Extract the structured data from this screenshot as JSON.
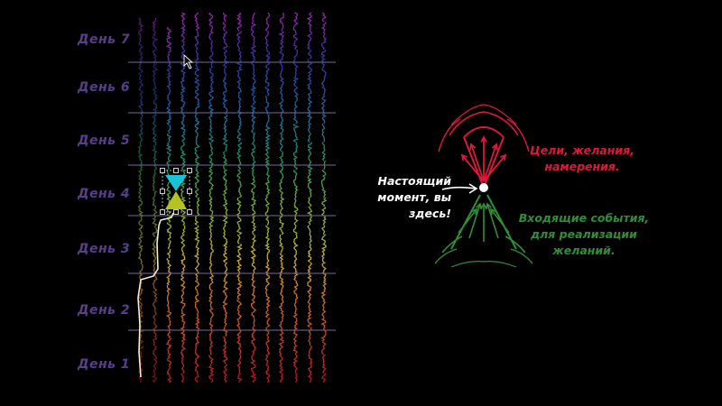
{
  "days": [
    "День 1",
    "День 2",
    "День 3",
    "День 4",
    "День 5",
    "День 6",
    "День 7"
  ],
  "labels": {
    "present": [
      "Настоящий",
      "момент, вы",
      "здесь!"
    ],
    "goals": [
      "Цели, желания,",
      "намерения."
    ],
    "events": [
      "Входящие события,",
      "для реализации",
      "желаний."
    ]
  },
  "colors": {
    "day_label": "#5a3d8a",
    "goals": "#e0163a",
    "events": "#2f8f35",
    "present": "#ffffff",
    "hourglass_top": "#19c3d6",
    "hourglass_bottom": "#b6c21f",
    "path": "#f4f1c8"
  },
  "icons": [
    "hourglass-icon",
    "cursor-icon",
    "volcano-icon"
  ]
}
